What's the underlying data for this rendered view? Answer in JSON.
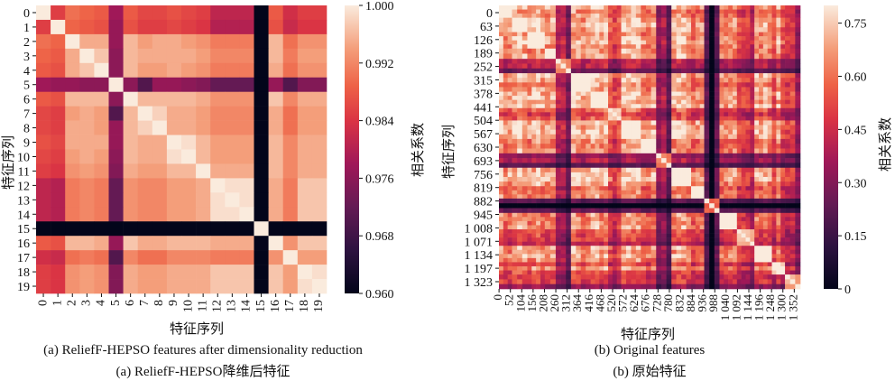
{
  "chart_data": [
    {
      "type": "heatmap",
      "caption_en": "(a) ReliefF-HEPSO features after dimensionality reduction",
      "caption_zh": "(a) ReliefF-HEPSO降维后特征",
      "xlabel": "特征序列",
      "ylabel": "特征序列",
      "colorbar_label": "相关系数",
      "colorbar_ticks": [
        "1.000",
        "0.992",
        "0.984",
        "0.976",
        "0.968",
        "0.960"
      ],
      "vmin": 0.96,
      "vmax": 1.0,
      "x_tick_labels": [
        "0",
        "1",
        "2",
        "3",
        "4",
        "5",
        "6",
        "7",
        "8",
        "9",
        "10",
        "11",
        "12",
        "13",
        "14",
        "15",
        "16",
        "17",
        "18",
        "19"
      ],
      "y_tick_labels": [
        "0",
        "1",
        "2",
        "3",
        "4",
        "5",
        "6",
        "7",
        "8",
        "9",
        "10",
        "11",
        "12",
        "13",
        "14",
        "15",
        "16",
        "17",
        "18",
        "19"
      ],
      "matrix": [
        [
          1.0,
          0.985,
          0.99,
          0.989,
          0.988,
          0.978,
          0.988,
          0.986,
          0.986,
          0.987,
          0.986,
          0.985,
          0.981,
          0.981,
          0.981,
          0.96,
          0.988,
          0.983,
          0.985,
          0.985
        ],
        [
          0.985,
          1.0,
          0.989,
          0.988,
          0.987,
          0.977,
          0.987,
          0.985,
          0.985,
          0.986,
          0.985,
          0.984,
          0.98,
          0.98,
          0.98,
          0.96,
          0.987,
          0.982,
          0.984,
          0.984
        ],
        [
          0.99,
          0.989,
          1.0,
          0.995,
          0.995,
          0.977,
          0.996,
          0.994,
          0.995,
          0.995,
          0.994,
          0.993,
          0.991,
          0.991,
          0.991,
          0.96,
          0.996,
          0.99,
          0.993,
          0.993
        ],
        [
          0.989,
          0.988,
          0.995,
          1.0,
          0.997,
          0.976,
          0.996,
          0.995,
          0.995,
          0.995,
          0.995,
          0.994,
          0.992,
          0.992,
          0.992,
          0.96,
          0.996,
          0.991,
          0.994,
          0.994
        ],
        [
          0.988,
          0.987,
          0.995,
          0.997,
          1.0,
          0.976,
          0.996,
          0.994,
          0.994,
          0.995,
          0.994,
          0.993,
          0.991,
          0.991,
          0.991,
          0.96,
          0.995,
          0.99,
          0.993,
          0.993
        ],
        [
          0.978,
          0.977,
          0.977,
          0.976,
          0.976,
          1.0,
          0.976,
          0.97,
          0.977,
          0.977,
          0.976,
          0.975,
          0.972,
          0.972,
          0.972,
          0.96,
          0.977,
          0.97,
          0.975,
          0.975
        ],
        [
          0.988,
          0.987,
          0.996,
          0.996,
          0.996,
          0.976,
          1.0,
          0.996,
          0.996,
          0.996,
          0.996,
          0.995,
          0.993,
          0.993,
          0.993,
          0.96,
          0.997,
          0.992,
          0.995,
          0.995
        ],
        [
          0.986,
          0.985,
          0.994,
          0.995,
          0.994,
          0.97,
          0.996,
          1.0,
          0.998,
          0.995,
          0.995,
          0.994,
          0.992,
          0.992,
          0.992,
          0.96,
          0.995,
          0.99,
          0.994,
          0.994
        ],
        [
          0.986,
          0.985,
          0.995,
          0.995,
          0.994,
          0.977,
          0.996,
          0.998,
          1.0,
          0.995,
          0.995,
          0.994,
          0.992,
          0.992,
          0.992,
          0.96,
          0.995,
          0.99,
          0.994,
          0.994
        ],
        [
          0.987,
          0.986,
          0.995,
          0.995,
          0.995,
          0.977,
          0.996,
          0.995,
          0.995,
          1.0,
          0.999,
          0.996,
          0.994,
          0.994,
          0.994,
          0.96,
          0.996,
          0.992,
          0.995,
          0.995
        ],
        [
          0.986,
          0.985,
          0.994,
          0.995,
          0.994,
          0.976,
          0.996,
          0.995,
          0.995,
          0.999,
          1.0,
          0.996,
          0.994,
          0.994,
          0.994,
          0.96,
          0.996,
          0.992,
          0.995,
          0.995
        ],
        [
          0.985,
          0.984,
          0.993,
          0.994,
          0.993,
          0.975,
          0.995,
          0.994,
          0.994,
          0.996,
          0.996,
          1.0,
          0.995,
          0.995,
          0.995,
          0.96,
          0.996,
          0.992,
          0.995,
          0.995
        ],
        [
          0.981,
          0.98,
          0.991,
          0.992,
          0.991,
          0.972,
          0.993,
          0.992,
          0.992,
          0.994,
          0.994,
          0.995,
          1.0,
          0.999,
          0.999,
          0.96,
          0.995,
          0.991,
          0.997,
          0.997
        ],
        [
          0.981,
          0.98,
          0.991,
          0.992,
          0.991,
          0.972,
          0.993,
          0.992,
          0.992,
          0.994,
          0.994,
          0.995,
          0.999,
          1.0,
          0.999,
          0.96,
          0.995,
          0.991,
          0.997,
          0.997
        ],
        [
          0.981,
          0.98,
          0.991,
          0.992,
          0.991,
          0.972,
          0.993,
          0.992,
          0.992,
          0.994,
          0.994,
          0.995,
          0.999,
          0.999,
          1.0,
          0.96,
          0.995,
          0.991,
          0.997,
          0.997
        ],
        [
          0.96,
          0.96,
          0.96,
          0.96,
          0.96,
          0.96,
          0.96,
          0.96,
          0.96,
          0.96,
          0.96,
          0.96,
          0.96,
          0.96,
          0.96,
          1.0,
          0.96,
          0.96,
          0.96,
          0.96
        ],
        [
          0.988,
          0.987,
          0.996,
          0.996,
          0.995,
          0.977,
          0.997,
          0.995,
          0.995,
          0.996,
          0.996,
          0.996,
          0.995,
          0.995,
          0.995,
          0.96,
          1.0,
          0.993,
          0.997,
          0.997
        ],
        [
          0.983,
          0.982,
          0.99,
          0.991,
          0.99,
          0.97,
          0.992,
          0.99,
          0.99,
          0.992,
          0.992,
          0.992,
          0.991,
          0.991,
          0.991,
          0.96,
          0.993,
          1.0,
          0.994,
          0.994
        ],
        [
          0.985,
          0.984,
          0.993,
          0.994,
          0.993,
          0.975,
          0.995,
          0.994,
          0.994,
          0.995,
          0.995,
          0.995,
          0.997,
          0.997,
          0.997,
          0.96,
          0.997,
          0.994,
          1.0,
          0.999
        ],
        [
          0.985,
          0.984,
          0.993,
          0.994,
          0.993,
          0.975,
          0.995,
          0.994,
          0.994,
          0.995,
          0.995,
          0.995,
          0.997,
          0.997,
          0.997,
          0.96,
          0.997,
          0.994,
          0.999,
          1.0
        ]
      ]
    },
    {
      "type": "heatmap",
      "caption_en": "(b) Original features",
      "caption_zh": "(b) 原始特征",
      "xlabel": "特征序列",
      "ylabel": "特征序列",
      "colorbar_label": "相关系数",
      "colorbar_ticks": [
        "0.75",
        "0.60",
        "0.45",
        "0.30",
        "0.15",
        "0"
      ],
      "vmin": 0.0,
      "vmax": 0.8,
      "n_features": 1380,
      "x_tick_labels": [
        "0",
        "52",
        "104",
        "156",
        "208",
        "260",
        "312",
        "364",
        "416",
        "468",
        "520",
        "572",
        "624",
        "676",
        "728",
        "780",
        "832",
        "884",
        "936",
        "988",
        "1 040",
        "1 092",
        "1 144",
        "1 196",
        "1 248",
        "1 300",
        "1 352"
      ],
      "y_tick_labels": [
        "0",
        "63",
        "126",
        "189",
        "252",
        "315",
        "378",
        "441",
        "504",
        "567",
        "630",
        "693",
        "756",
        "819",
        "882",
        "945",
        "1 008",
        "1 071",
        "1 134",
        "1 197",
        "1 323"
      ],
      "blocks": [
        {
          "start": 0,
          "end": 60,
          "level": 0.62
        },
        {
          "start": 60,
          "end": 130,
          "level": 0.78
        },
        {
          "start": 130,
          "end": 210,
          "level": 0.74
        },
        {
          "start": 210,
          "end": 260,
          "level": 0.55
        },
        {
          "start": 260,
          "end": 330,
          "level": 0.18
        },
        {
          "start": 330,
          "end": 420,
          "level": 0.72
        },
        {
          "start": 420,
          "end": 500,
          "level": 0.8
        },
        {
          "start": 500,
          "end": 560,
          "level": 0.35
        },
        {
          "start": 560,
          "end": 650,
          "level": 0.78
        },
        {
          "start": 650,
          "end": 720,
          "level": 0.6
        },
        {
          "start": 720,
          "end": 790,
          "level": 0.12
        },
        {
          "start": 790,
          "end": 880,
          "level": 0.76
        },
        {
          "start": 880,
          "end": 940,
          "level": 0.45
        },
        {
          "start": 940,
          "end": 1010,
          "level": 0.08
        },
        {
          "start": 1010,
          "end": 1090,
          "level": 0.7
        },
        {
          "start": 1090,
          "end": 1170,
          "level": 0.3
        },
        {
          "start": 1170,
          "end": 1250,
          "level": 0.66
        },
        {
          "start": 1250,
          "end": 1310,
          "level": 0.52
        },
        {
          "start": 1310,
          "end": 1380,
          "level": 0.22
        }
      ]
    }
  ]
}
